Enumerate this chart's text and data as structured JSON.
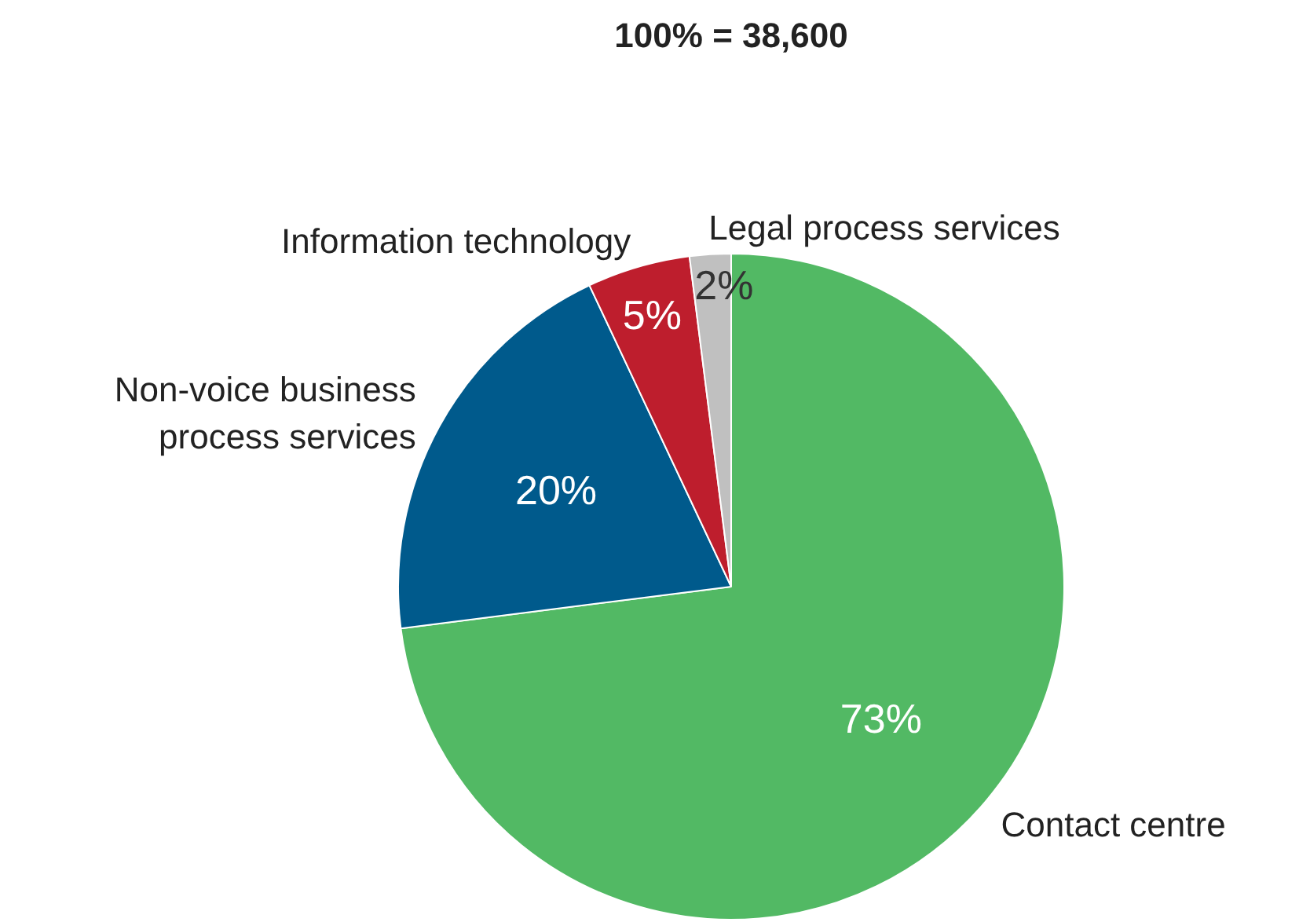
{
  "chart_data": {
    "type": "pie",
    "title": "100% = 38,600",
    "categories": [
      "Contact centre",
      "Non-voice business\nprocess services",
      "Information technology",
      "Legal process services"
    ],
    "values": [
      73,
      20,
      5,
      2
    ],
    "colors": [
      "#52b964",
      "#005a8c",
      "#be1e2d",
      "#c0c0c0"
    ],
    "value_labels": [
      "73%",
      "20%",
      "5%",
      "2%"
    ]
  }
}
